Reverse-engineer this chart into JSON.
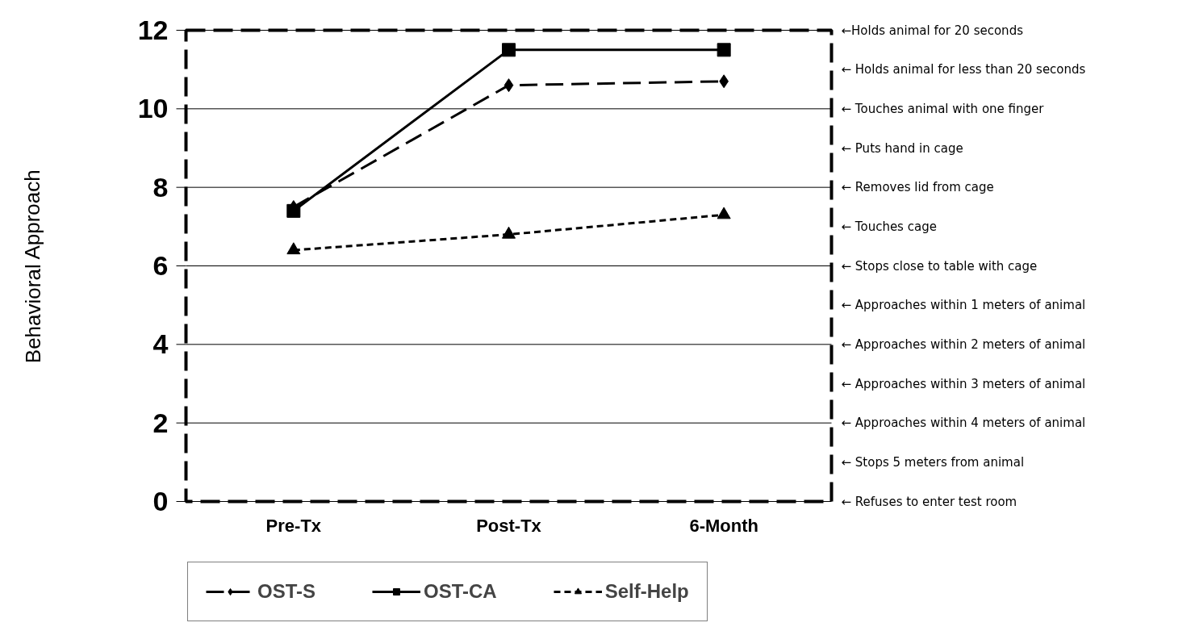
{
  "chart_data": {
    "type": "line",
    "ylabel": "Behavioral Approach",
    "categories": [
      "Pre-Tx",
      "Post-Tx",
      "6-Month"
    ],
    "series": [
      {
        "name": "OST-S",
        "color": "#000000",
        "values": [
          7.5,
          10.6,
          10.7
        ],
        "marker": "diamond",
        "line_style": "dashed"
      },
      {
        "name": "OST-CA",
        "color": "#000000",
        "values": [
          7.4,
          11.5,
          11.5
        ],
        "marker": "square",
        "line_style": "solid"
      },
      {
        "name": "Self-Help",
        "color": "#000000",
        "values": [
          6.4,
          6.8,
          7.3
        ],
        "marker": "triangle",
        "line_style": "dotted"
      }
    ],
    "ylim": [
      0,
      12
    ],
    "yticks": [
      0,
      2,
      4,
      6,
      8,
      10,
      12
    ],
    "grid": "y",
    "legend": "bottom",
    "annotations": [
      "←Holds animal for 20 seconds",
      "← Holds animal for less than 20 seconds",
      "← Touches animal with one finger",
      "← Puts hand in cage",
      "← Removes lid from cage",
      "← Touches cage",
      "← Stops close to table with cage",
      "← Approaches within 1 meters of animal",
      "← Approaches within 2 meters of animal",
      "← Approaches within 3 meters of animal",
      "← Approaches within 4 meters of animal",
      "← Stops 5 meters from animal",
      "← Refuses to enter test room"
    ]
  }
}
